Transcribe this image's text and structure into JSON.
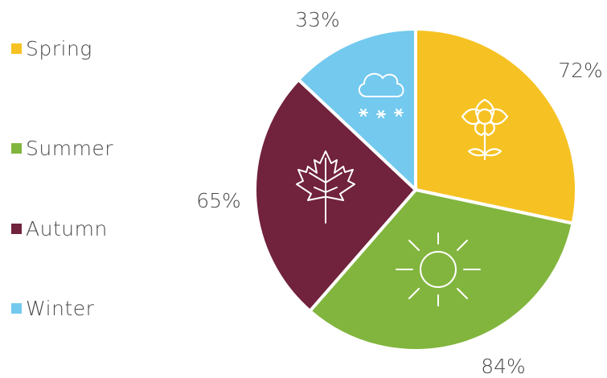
{
  "chart_data": {
    "type": "pie",
    "categories": [
      "Spring",
      "Summer",
      "Autumn",
      "Winter"
    ],
    "values": [
      72,
      84,
      65,
      33
    ],
    "value_labels": [
      "72%",
      "84%",
      "65%",
      "33%"
    ],
    "colors": [
      "#F6C223",
      "#82B53E",
      "#71223C",
      "#73C9EE"
    ],
    "icons": [
      "sunflower-icon",
      "sun-icon",
      "maple-leaf-icon",
      "snow-cloud-icon"
    ],
    "legend_position": "left",
    "title": "",
    "xlabel": "",
    "ylabel": ""
  }
}
